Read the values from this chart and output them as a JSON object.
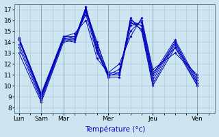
{
  "xlabel": "Température (°c)",
  "bg_color": "#cce5f0",
  "line_color": "#0000bb",
  "ylim": [
    7.5,
    17.5
  ],
  "yticks": [
    8,
    9,
    10,
    11,
    12,
    13,
    14,
    15,
    16,
    17
  ],
  "day_labels": [
    "Lun",
    "Sam",
    "Mar",
    "Mer",
    "Jeu",
    "Ven"
  ],
  "day_x": [
    0,
    1,
    2,
    4,
    6,
    8
  ],
  "series": [
    [
      13.0,
      8.5,
      14.0,
      14.2,
      17.0,
      14.0,
      11.0,
      11.0,
      16.2,
      15.0,
      10.0,
      13.5,
      10.0
    ],
    [
      13.5,
      8.7,
      14.2,
      14.0,
      16.8,
      13.8,
      11.2,
      11.2,
      15.8,
      15.2,
      10.2,
      13.8,
      10.0
    ],
    [
      13.8,
      8.9,
      14.3,
      14.2,
      17.2,
      13.5,
      11.0,
      11.0,
      16.0,
      15.5,
      10.5,
      14.0,
      10.2
    ],
    [
      14.2,
      9.1,
      14.4,
      14.3,
      17.2,
      13.2,
      10.8,
      10.8,
      15.5,
      15.8,
      11.0,
      14.2,
      10.5
    ],
    [
      14.3,
      9.2,
      14.5,
      14.5,
      16.5,
      13.0,
      11.0,
      11.5,
      15.0,
      16.0,
      11.2,
      13.5,
      10.8
    ],
    [
      14.4,
      9.3,
      14.5,
      14.8,
      16.0,
      12.5,
      11.2,
      12.0,
      14.5,
      16.2,
      11.5,
      13.0,
      11.0
    ],
    [
      14.2,
      9.0,
      14.3,
      14.5,
      16.8,
      13.3,
      10.9,
      11.2,
      15.8,
      15.5,
      10.8,
      14.0,
      10.3
    ]
  ],
  "x_points": [
    0,
    1,
    2,
    2.5,
    3,
    3.5,
    4,
    4.5,
    5,
    5.5,
    6,
    7,
    8
  ]
}
